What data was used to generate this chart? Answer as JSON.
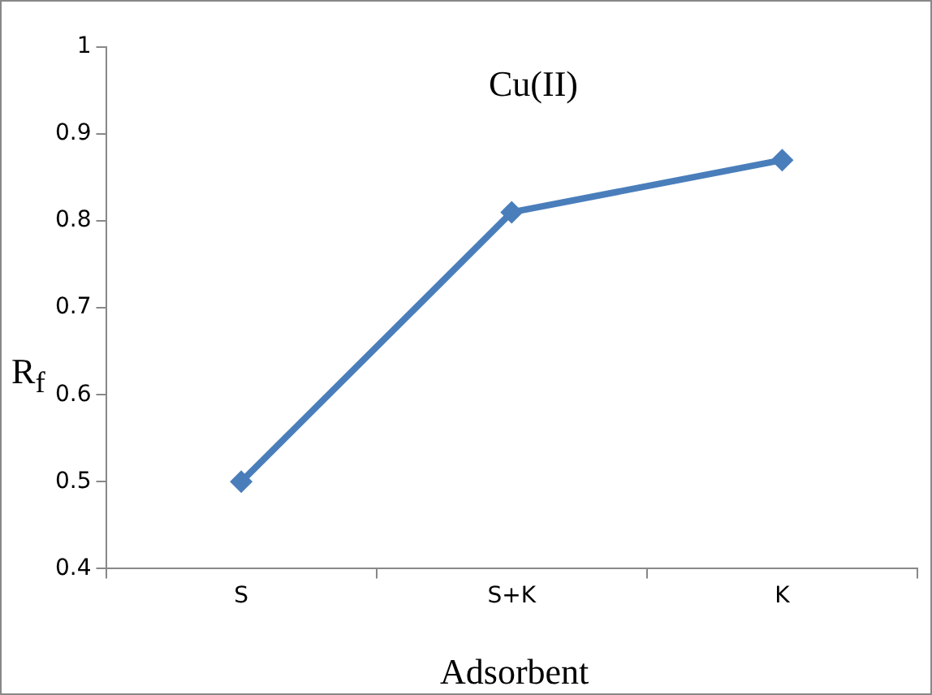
{
  "chart_data": {
    "type": "line",
    "title": "Cu(II)",
    "xlabel": "Adsorbent",
    "ylabel": "R$_{f}$",
    "categories": [
      "S",
      "S+K",
      "K"
    ],
    "series": [
      {
        "color": "#4a7ebb",
        "values": [
          0.5,
          0.81,
          0.87
        ]
      }
    ],
    "ylim": [
      0.4,
      1
    ],
    "yticks": [
      0.4,
      0.5,
      0.6,
      0.7,
      0.8,
      0.9,
      1
    ],
    "grid": false,
    "legend": false,
    "marker": "diamond",
    "line_style": "solid"
  }
}
